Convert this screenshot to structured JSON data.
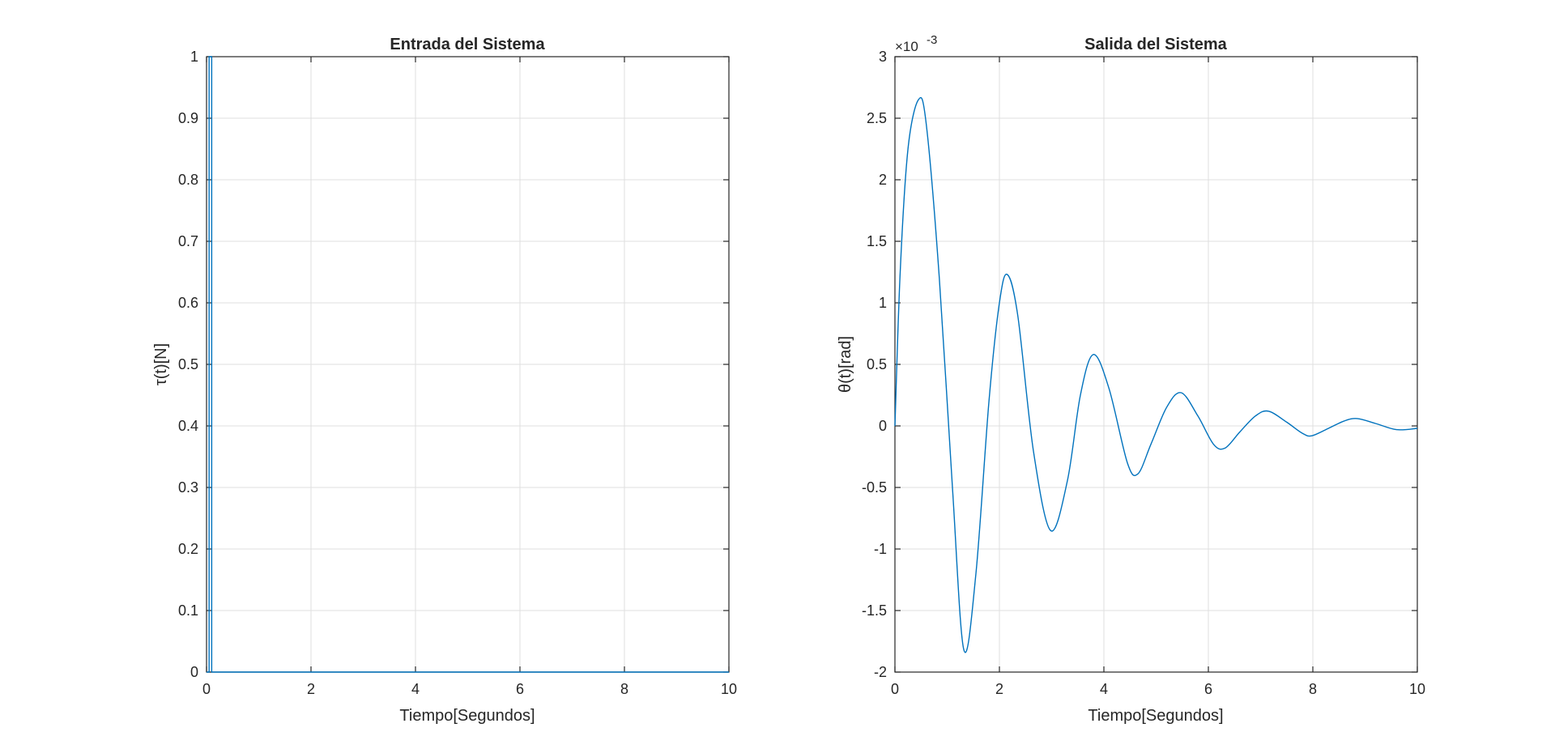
{
  "figure_bg": "#ffffff",
  "chart_data": [
    {
      "type": "line",
      "title": "Entrada del Sistema",
      "xlabel": "Tiempo[Segundos]",
      "ylabel": "τ(t)[N]",
      "xlim": [
        0,
        10
      ],
      "ylim": [
        0,
        1
      ],
      "xticks": [
        0,
        2,
        4,
        6,
        8,
        10
      ],
      "xtick_labels": [
        "0",
        "2",
        "4",
        "6",
        "8",
        "10"
      ],
      "yticks": [
        0,
        0.1,
        0.2,
        0.3,
        0.4,
        0.5,
        0.6,
        0.7,
        0.8,
        0.9,
        1
      ],
      "ytick_labels": [
        "0",
        "0.1",
        "0.2",
        "0.3",
        "0.4",
        "0.5",
        "0.6",
        "0.7",
        "0.8",
        "0.9",
        "1"
      ],
      "grid": true,
      "color": "#0072bd",
      "series": [
        {
          "x": [
            0,
            0.05,
            0.05,
            0.1,
            0.1,
            10
          ],
          "y": [
            0,
            0,
            1,
            1,
            0,
            0
          ]
        }
      ]
    },
    {
      "type": "line",
      "title": "Salida del Sistema",
      "xlabel": "Tiempo[Segundos]",
      "ylabel": "θ(t)[rad]",
      "exponent_label": "×10",
      "exponent_power": "-3",
      "xlim": [
        0,
        10
      ],
      "ylim": [
        -2,
        3
      ],
      "xticks": [
        0,
        2,
        4,
        6,
        8,
        10
      ],
      "xtick_labels": [
        "0",
        "2",
        "4",
        "6",
        "8",
        "10"
      ],
      "yticks": [
        -2,
        -1.5,
        -1,
        -0.5,
        0,
        0.5,
        1,
        1.5,
        2,
        2.5,
        3
      ],
      "ytick_labels": [
        "-2",
        "-1.5",
        "-1",
        "-0.5",
        "0",
        "0.5",
        "1",
        "1.5",
        "2",
        "2.5",
        "3"
      ],
      "grid": true,
      "color": "#0072bd",
      "series": [
        {
          "x": [
            0,
            0.1,
            0.25,
            0.45,
            0.6,
            0.85,
            1.1,
            1.32,
            1.55,
            1.8,
            2.0,
            2.15,
            2.35,
            2.65,
            2.98,
            3.3,
            3.55,
            3.8,
            4.1,
            4.45,
            4.65,
            4.9,
            5.2,
            5.48,
            5.8,
            6.1,
            6.32,
            6.6,
            6.9,
            7.15,
            7.5,
            7.8,
            7.98,
            8.3,
            8.6,
            8.85,
            9.2,
            9.6,
            10
          ],
          "y": [
            0,
            1.25,
            2.25,
            2.65,
            2.45,
            1.2,
            -0.5,
            -1.82,
            -1.2,
            0.2,
            1.0,
            1.23,
            0.9,
            -0.2,
            -0.85,
            -0.45,
            0.25,
            0.58,
            0.3,
            -0.3,
            -0.39,
            -0.15,
            0.15,
            0.27,
            0.08,
            -0.15,
            -0.18,
            -0.05,
            0.08,
            0.12,
            0.03,
            -0.06,
            -0.08,
            -0.02,
            0.04,
            0.06,
            0.02,
            -0.03,
            -0.02
          ]
        }
      ]
    }
  ]
}
